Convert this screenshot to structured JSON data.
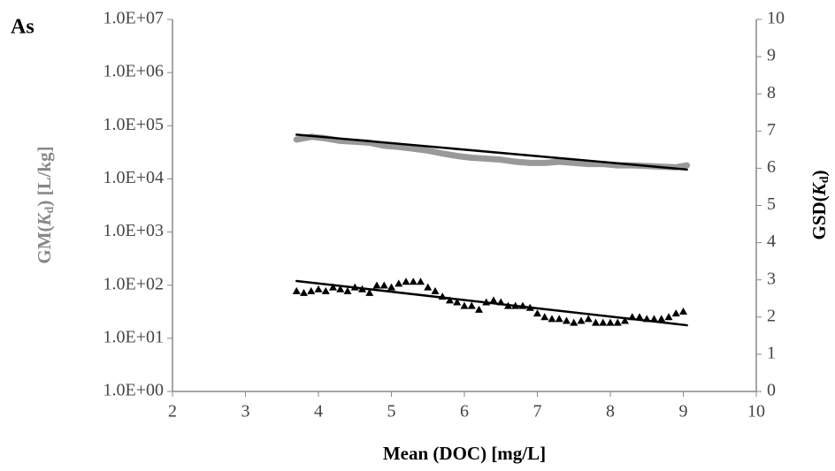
{
  "chart_data": {
    "type": "line",
    "panel_label": "As",
    "x_label": "Mean (DOC) [mg/L]",
    "y_label": [
      "GM(",
      "K",
      "d",
      ") [L/kg]"
    ],
    "y2_label": [
      "GSD(",
      "K",
      "d",
      ")"
    ],
    "xlim": [
      2,
      10
    ],
    "xticks": [
      2,
      3,
      4,
      5,
      6,
      7,
      8,
      9,
      10
    ],
    "ylim": [
      1,
      10000000
    ],
    "log_y": true,
    "yticks": [
      {
        "value": 1,
        "label": "1.0E+00"
      },
      {
        "value": 10,
        "label": "1.0E+01"
      },
      {
        "value": 100,
        "label": "1.0E+02"
      },
      {
        "value": 1000,
        "label": "1.0E+03"
      },
      {
        "value": 10000,
        "label": "1.0E+04"
      },
      {
        "value": 100000,
        "label": "1.0E+05"
      },
      {
        "value": 1000000,
        "label": "1.0E+06"
      },
      {
        "value": 10000000,
        "label": "1.0E+07"
      }
    ],
    "y2lim": [
      0,
      10
    ],
    "y2ticks": [
      0,
      1,
      2,
      3,
      4,
      5,
      6,
      7,
      8,
      9,
      10
    ],
    "grid": false,
    "series": [
      {
        "color": "#999999",
        "axis": "y",
        "width": 7,
        "x": [
          3.7,
          3.9,
          4.1,
          4.3,
          4.5,
          4.7,
          4.9,
          5.1,
          5.3,
          5.5,
          5.7,
          5.9,
          6.1,
          6.3,
          6.5,
          6.7,
          6.9,
          7.1,
          7.3,
          7.5,
          7.7,
          7.9,
          8.1,
          8.3,
          8.5,
          8.7,
          8.9,
          9.05
        ],
        "values": [
          55000,
          62000,
          58000,
          52000,
          50000,
          48000,
          42000,
          40000,
          37000,
          34000,
          30000,
          27000,
          25000,
          24000,
          23000,
          21000,
          20000,
          20000,
          21000,
          20000,
          19000,
          19000,
          18000,
          18000,
          17500,
          17000,
          16500,
          18000
        ]
      },
      {
        "color": "#000000",
        "axis": "y",
        "width": 2.5,
        "x": [
          3.7,
          9.05
        ],
        "values": [
          68000,
          15000
        ]
      },
      {
        "color": "#000000",
        "axis": "y2",
        "marker": "triangle",
        "x": [
          3.7,
          3.8,
          3.9,
          4.0,
          4.1,
          4.2,
          4.3,
          4.4,
          4.5,
          4.6,
          4.7,
          4.8,
          4.9,
          5.0,
          5.1,
          5.2,
          5.3,
          5.4,
          5.5,
          5.6,
          5.7,
          5.8,
          5.9,
          6.0,
          6.1,
          6.2,
          6.3,
          6.4,
          6.5,
          6.6,
          6.7,
          6.8,
          6.9,
          7.0,
          7.1,
          7.2,
          7.3,
          7.4,
          7.5,
          7.6,
          7.7,
          7.8,
          7.9,
          8.0,
          8.1,
          8.2,
          8.3,
          8.4,
          8.5,
          8.6,
          8.7,
          8.8,
          8.9,
          9.0
        ],
        "values": [
          2.7,
          2.65,
          2.7,
          2.75,
          2.7,
          2.8,
          2.75,
          2.7,
          2.8,
          2.75,
          2.65,
          2.85,
          2.85,
          2.8,
          2.9,
          2.95,
          2.95,
          2.95,
          2.8,
          2.7,
          2.55,
          2.45,
          2.4,
          2.3,
          2.3,
          2.2,
          2.4,
          2.45,
          2.4,
          2.3,
          2.3,
          2.3,
          2.25,
          2.1,
          2.0,
          1.95,
          1.95,
          1.9,
          1.85,
          1.9,
          1.95,
          1.85,
          1.85,
          1.85,
          1.85,
          1.9,
          2.0,
          2.0,
          1.95,
          1.95,
          1.95,
          2.0,
          2.1,
          2.15
        ]
      },
      {
        "color": "#000000",
        "axis": "y2",
        "width": 2.5,
        "x": [
          3.7,
          9.05
        ],
        "values": [
          2.97,
          1.78
        ]
      }
    ]
  }
}
